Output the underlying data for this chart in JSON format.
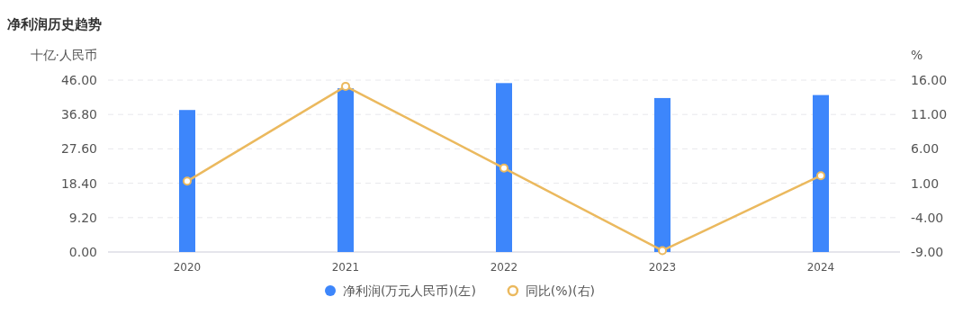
{
  "chart_data": {
    "type": "bar",
    "title": "净利润历史趋势",
    "ylabel": "十亿·人民币",
    "y2label": "%",
    "categories": [
      "2020",
      "2021",
      "2022",
      "2023",
      "2024"
    ],
    "series": [
      {
        "name": "净利润(万元人民币)(左)",
        "color": "#3d86fb",
        "values": [
          38.0,
          43.8,
          45.2,
          41.2,
          42.0
        ]
      },
      {
        "name": "同比(%)(右)",
        "type": "line",
        "axis": "y2",
        "color": "#ebb95e",
        "marker": "circle",
        "values": [
          1.3,
          15.1,
          3.2,
          -8.8,
          2.1
        ]
      }
    ],
    "ylim": [
      0,
      46
    ],
    "yticks": [
      {
        "value": 0,
        "label": "0.00"
      },
      {
        "value": 9.2,
        "label": "9.20"
      },
      {
        "value": 18.4,
        "label": "18.40"
      },
      {
        "value": 27.6,
        "label": "27.60"
      },
      {
        "value": 36.8,
        "label": "36.80"
      },
      {
        "value": 46,
        "label": "46.00"
      }
    ],
    "y2lim": [
      -9,
      16
    ],
    "y2ticks": [
      {
        "value": -9,
        "label": "-9.00"
      },
      {
        "value": -4,
        "label": "-4.00"
      },
      {
        "value": 1,
        "label": "1.00"
      },
      {
        "value": 6,
        "label": "6.00"
      },
      {
        "value": 11,
        "label": "11.00"
      },
      {
        "value": 16,
        "label": "16.00"
      }
    ],
    "grid": "y",
    "legend": "bottom"
  }
}
